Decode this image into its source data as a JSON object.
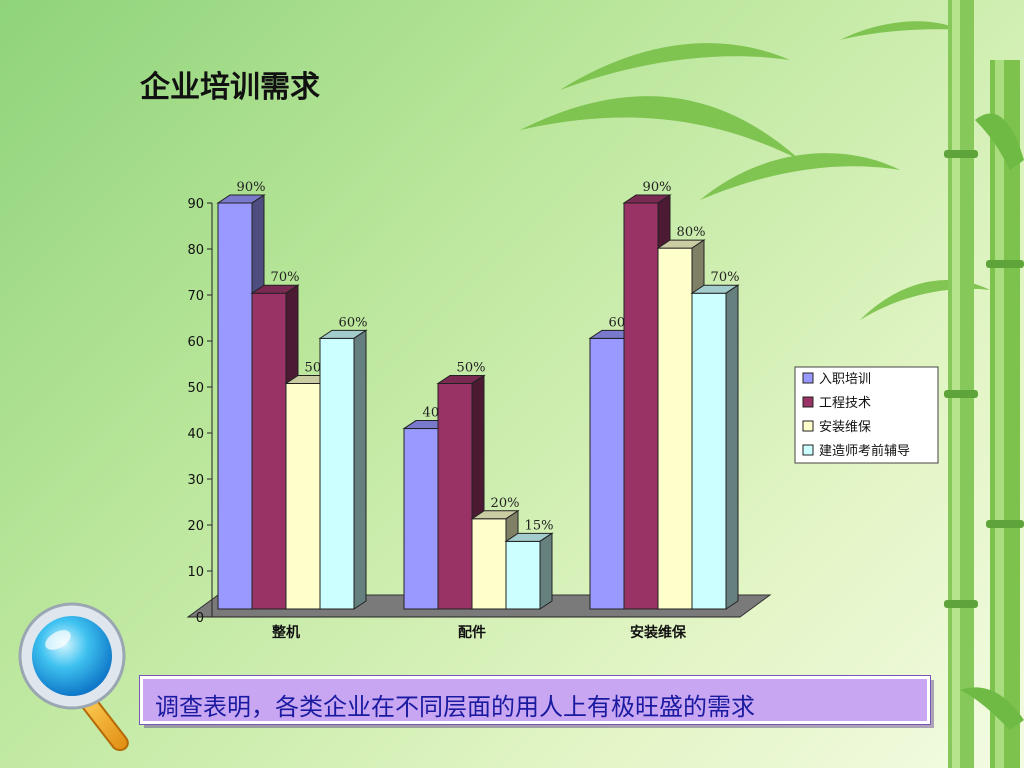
{
  "title": "企业培训需求",
  "caption": "调查表明，各类企业在不同层面的用人上有极旺盛的需求",
  "colors": {
    "bar_fronts": [
      "#9999ff",
      "#993366",
      "#ffffcc",
      "#ccffff"
    ],
    "caption_bg": "#c8a6f2",
    "caption_text": "#1a1aa0"
  },
  "decorations": [
    "bamboo-illustration",
    "magnifier-icon"
  ],
  "chart_data": {
    "type": "bar",
    "style": "3d-clustered",
    "title": "",
    "xlabel": "",
    "ylabel": "",
    "categories": [
      "整机",
      "配件",
      "安装维保"
    ],
    "ylim": [
      0,
      90
    ],
    "yticks": [
      "0",
      "10",
      "20",
      "30",
      "40",
      "50",
      "60",
      "70",
      "80",
      "90"
    ],
    "grid": false,
    "legend_position": "right",
    "series": [
      {
        "name": "入职培训",
        "values": [
          90,
          40,
          60
        ],
        "labels": [
          "90%",
          "40%",
          "60%"
        ]
      },
      {
        "name": "工程技术",
        "values": [
          70,
          50,
          90
        ],
        "labels": [
          "70%",
          "50%",
          "90%"
        ]
      },
      {
        "name": "安装维保",
        "values": [
          50,
          20,
          80
        ],
        "labels": [
          "50%",
          "20%",
          "80%"
        ]
      },
      {
        "name": "建造师考前辅导",
        "values": [
          60,
          15,
          70
        ],
        "labels": [
          "60%",
          "15%",
          "70%"
        ]
      }
    ]
  }
}
